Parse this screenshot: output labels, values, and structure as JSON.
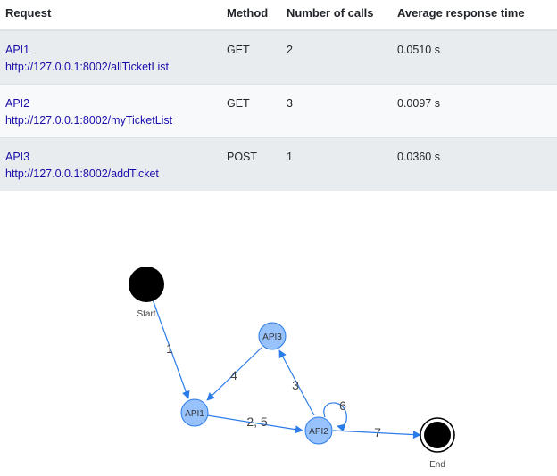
{
  "table": {
    "headers": [
      "Request",
      "Method",
      "Number of calls",
      "Average response time"
    ],
    "rows": [
      {
        "name": "API1",
        "url": "http://127.0.0.1:8002/allTicketList",
        "method": "GET",
        "calls": "2",
        "avg": "0.0510 s"
      },
      {
        "name": "API2",
        "url": "http://127.0.0.1:8002/myTicketList",
        "method": "GET",
        "calls": "3",
        "avg": "0.0097 s"
      },
      {
        "name": "API3",
        "url": "http://127.0.0.1:8002/addTicket",
        "method": "POST",
        "calls": "1",
        "avg": "0.0360 s"
      }
    ]
  },
  "graph": {
    "nodes": {
      "start": {
        "label": "Start"
      },
      "api1": {
        "label": "API1"
      },
      "api2": {
        "label": "API2"
      },
      "api3": {
        "label": "API3"
      },
      "end": {
        "label": "End"
      }
    },
    "edges": {
      "start_api1": "1",
      "api3_api1": "4",
      "api1_api2": "2, 5",
      "api2_api3": "3",
      "api2_self": "6",
      "api2_end": "7"
    },
    "colors": {
      "node_fill": "#97c2fc",
      "node_border": "#2b7ce9",
      "edge": "#2b7ce9",
      "terminal": "#000000"
    }
  }
}
